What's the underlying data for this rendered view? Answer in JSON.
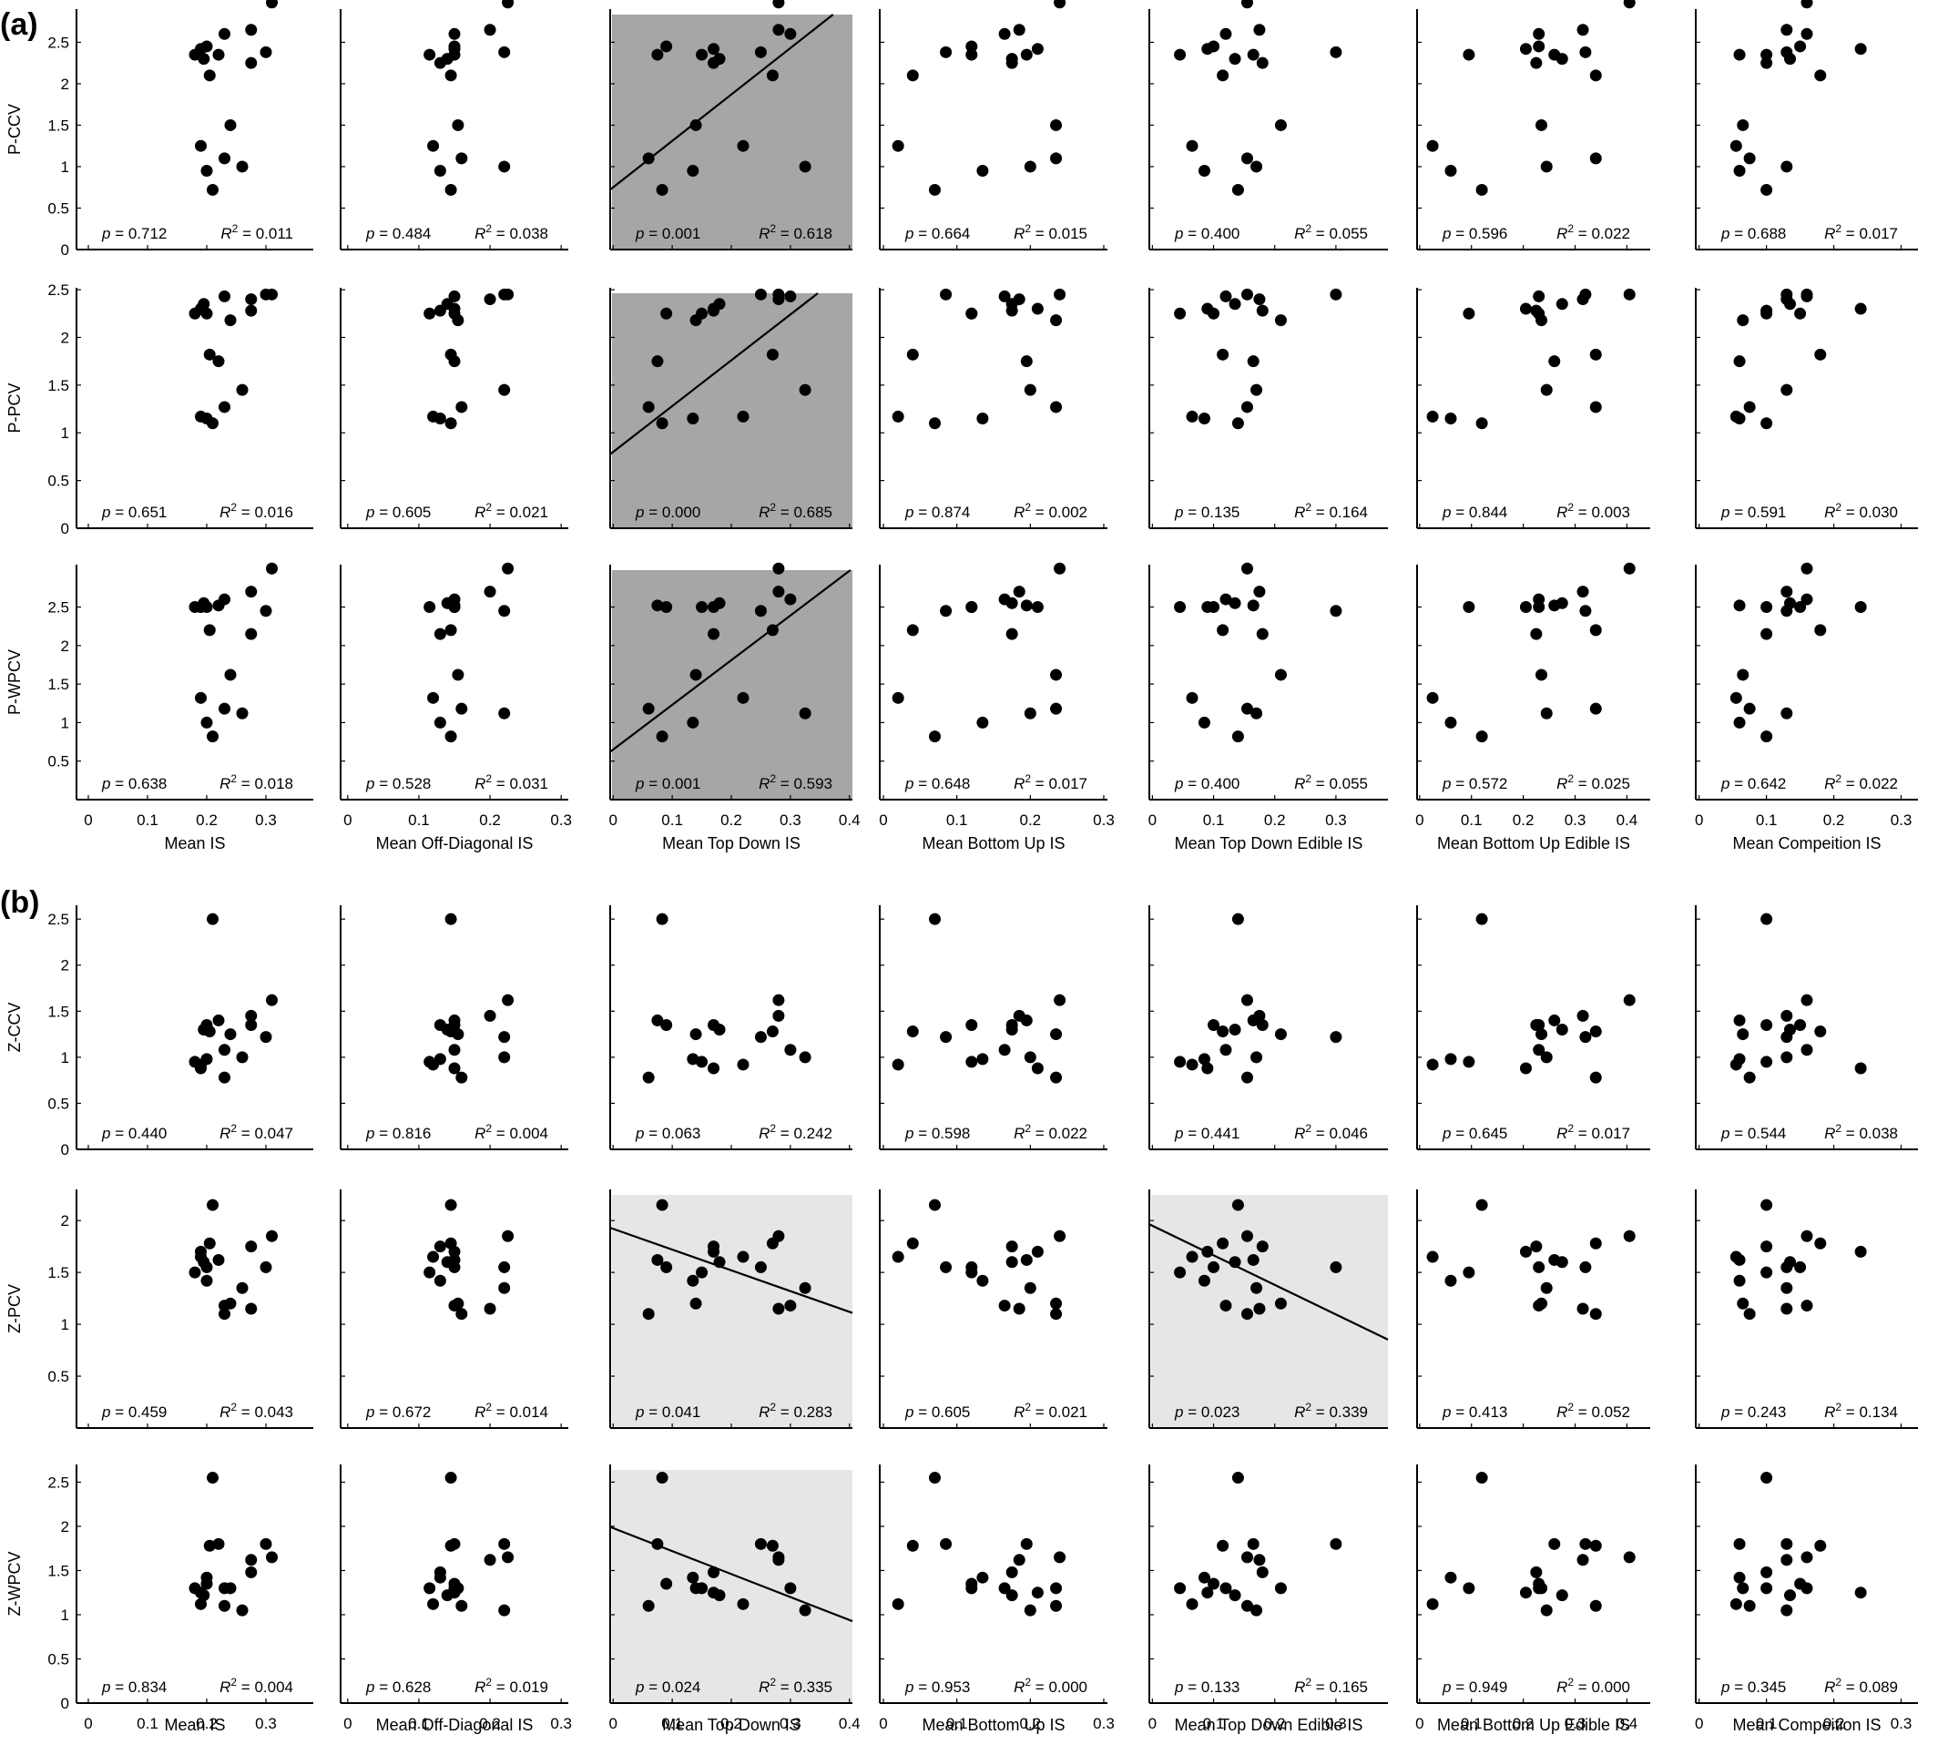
{
  "chart_data": {
    "type": "scatter",
    "panels": [
      {
        "label": "(a)",
        "rows": [
          "P-CCV",
          "P-PCV",
          "P-WPCV"
        ]
      },
      {
        "label": "(b)",
        "rows": [
          "Z-CCV",
          "Z-PCV",
          "Z-WPCV"
        ]
      }
    ],
    "columns": [
      {
        "xlabel": "Mean IS",
        "xlim": [
          -0.02,
          0.38
        ],
        "ticks": [
          0,
          0.1,
          0.2,
          0.3
        ],
        "tick_labels": [
          "0",
          "0.1",
          "0.2",
          "0.3"
        ],
        "x": [
          0.21,
          0.31,
          0.2,
          0.275,
          0.19,
          0.23,
          0.18,
          0.26,
          0.195,
          0.19,
          0.205,
          0.23,
          0.2,
          0.24,
          0.3,
          0.275,
          0.22
        ]
      },
      {
        "xlabel": "Mean Off-Diagonal IS",
        "xlim": [
          -0.01,
          0.31
        ],
        "ticks": [
          0,
          0.1,
          0.2,
          0.3
        ],
        "tick_labels": [
          "0",
          "0.1",
          "0.2",
          "0.3"
        ],
        "x": [
          0.145,
          0.225,
          0.13,
          0.2,
          0.12,
          0.15,
          0.115,
          0.22,
          0.14,
          0.15,
          0.145,
          0.16,
          0.15,
          0.155,
          0.22,
          0.13,
          0.15
        ]
      },
      {
        "xlabel": "Mean Top Down IS",
        "xlim": [
          -0.005,
          0.405
        ],
        "ticks": [
          0,
          0.1,
          0.2,
          0.3,
          0.4
        ],
        "tick_labels": [
          "0",
          "0.1",
          "0.2",
          "0.3",
          "0.4"
        ],
        "x": [
          0.083,
          0.28,
          0.135,
          0.28,
          0.22,
          0.3,
          0.15,
          0.325,
          0.18,
          0.17,
          0.27,
          0.06,
          0.09,
          0.14,
          0.25,
          0.17,
          0.075
        ]
      },
      {
        "xlabel": "Mean Bottom Up IS",
        "xlim": [
          -0.005,
          0.305
        ],
        "ticks": [
          0,
          0.1,
          0.2,
          0.3
        ],
        "tick_labels": [
          "0",
          "0.1",
          "0.2",
          "0.3"
        ],
        "x": [
          0.07,
          0.24,
          0.135,
          0.185,
          0.02,
          0.165,
          0.12,
          0.2,
          0.175,
          0.21,
          0.04,
          0.235,
          0.12,
          0.235,
          0.085,
          0.175,
          0.195
        ]
      },
      {
        "xlabel": "Mean Top Down Edible IS",
        "xlim": [
          -0.005,
          0.385
        ],
        "ticks": [
          0,
          0.1,
          0.2,
          0.3
        ],
        "tick_labels": [
          "0",
          "0.1",
          "0.2",
          "0.3"
        ],
        "x": [
          0.14,
          0.155,
          0.085,
          0.175,
          0.065,
          0.12,
          0.045,
          0.17,
          0.135,
          0.09,
          0.115,
          0.155,
          0.1,
          0.21,
          0.3,
          0.18,
          0.165
        ]
      },
      {
        "xlabel": "Mean Bottom Up Edible IS",
        "xlim": [
          -0.005,
          0.445
        ],
        "ticks": [
          0,
          0.1,
          0.2,
          0.3,
          0.4
        ],
        "tick_labels": [
          "0",
          "0.1",
          "0.2",
          "0.3",
          "0.4"
        ],
        "x": [
          0.12,
          0.405,
          0.06,
          0.315,
          0.025,
          0.23,
          0.095,
          0.245,
          0.275,
          0.205,
          0.34,
          0.34,
          0.23,
          0.235,
          0.32,
          0.225,
          0.26
        ]
      },
      {
        "xlabel": "Mean Compeition IS",
        "xlim": [
          -0.005,
          0.325
        ],
        "ticks": [
          0,
          0.1,
          0.2,
          0.3
        ],
        "tick_labels": [
          "0",
          "0.1",
          "0.2",
          "0.3"
        ],
        "x": [
          0.1,
          0.16,
          0.06,
          0.13,
          0.055,
          0.16,
          0.1,
          0.13,
          0.135,
          0.24,
          0.18,
          0.075,
          0.15,
          0.065,
          0.13,
          0.1,
          0.06
        ]
      }
    ],
    "rows": [
      {
        "name": "P-CCV",
        "ylim": [
          0,
          2.9
        ],
        "ticks": [
          0,
          0.5,
          1,
          1.5,
          2,
          2.5
        ],
        "tick_labels": [
          "0",
          "0.5",
          "1",
          "1.5",
          "2",
          "2.5"
        ],
        "y": [
          0.72,
          2.98,
          0.95,
          2.65,
          1.25,
          2.6,
          2.35,
          1.0,
          2.3,
          2.42,
          2.1,
          1.1,
          2.45,
          1.5,
          2.38,
          2.25,
          2.35
        ],
        "p": [
          "0.712",
          "0.484",
          "0.001",
          "0.664",
          "0.400",
          "0.596",
          "0.688"
        ],
        "r2": [
          "0.011",
          "0.038",
          "0.618",
          "0.015",
          "0.055",
          "0.022",
          "0.017"
        ]
      },
      {
        "name": "P-PCV",
        "ylim": [
          0,
          2.52
        ],
        "ticks": [
          0,
          0.5,
          1,
          1.5,
          2,
          2.5
        ],
        "tick_labels": [
          "0",
          "0.5",
          "1",
          "1.5",
          "2",
          "2.5"
        ],
        "y": [
          1.1,
          2.45,
          1.15,
          2.4,
          1.17,
          2.43,
          2.25,
          1.45,
          2.35,
          2.3,
          1.82,
          1.27,
          2.25,
          2.18,
          2.45,
          2.28,
          1.75
        ],
        "p": [
          "0.651",
          "0.605",
          "0.000",
          "0.874",
          "0.135",
          "0.844",
          "0.591"
        ],
        "r2": [
          "0.016",
          "0.021",
          "0.685",
          "0.002",
          "0.164",
          "0.003",
          "0.030"
        ]
      },
      {
        "name": "P-WPCV",
        "ylim": [
          0,
          3.05
        ],
        "ticks": [
          0.5,
          1,
          1.5,
          2,
          2.5
        ],
        "tick_labels": [
          "0.5",
          "1",
          "1.5",
          "2",
          "2.5"
        ],
        "y": [
          0.82,
          3.0,
          1.0,
          2.7,
          1.32,
          2.6,
          2.5,
          1.12,
          2.55,
          2.5,
          2.2,
          1.18,
          2.5,
          1.62,
          2.45,
          2.15,
          2.52
        ],
        "p": [
          "0.638",
          "0.528",
          "0.001",
          "0.648",
          "0.400",
          "0.572",
          "0.642"
        ],
        "r2": [
          "0.018",
          "0.031",
          "0.593",
          "0.017",
          "0.055",
          "0.025",
          "0.022"
        ]
      },
      {
        "name": "Z-CCV",
        "ylim": [
          0,
          2.65
        ],
        "ticks": [
          0,
          0.5,
          1,
          1.5,
          2,
          2.5
        ],
        "tick_labels": [
          "0",
          "0.5",
          "1",
          "1.5",
          "2",
          "2.5"
        ],
        "y": [
          2.5,
          1.62,
          0.98,
          1.45,
          0.92,
          1.08,
          0.95,
          1.0,
          1.3,
          0.88,
          1.28,
          0.78,
          1.35,
          1.25,
          1.22,
          1.35,
          1.4
        ],
        "p": [
          "0.440",
          "0.816",
          "0.063",
          "0.598",
          "0.441",
          "0.645",
          "0.544"
        ],
        "r2": [
          "0.047",
          "0.004",
          "0.242",
          "0.022",
          "0.046",
          "0.017",
          "0.038"
        ]
      },
      {
        "name": "Z-PCV",
        "ylim": [
          0,
          2.3
        ],
        "ticks": [
          0.5,
          1,
          1.5,
          2
        ],
        "tick_labels": [
          "0.5",
          "1",
          "1.5",
          "2"
        ],
        "y": [
          2.15,
          1.85,
          1.42,
          1.15,
          1.65,
          1.18,
          1.5,
          1.35,
          1.6,
          1.7,
          1.78,
          1.1,
          1.55,
          1.2,
          1.55,
          1.75,
          1.62
        ],
        "p": [
          "0.459",
          "0.672",
          "0.041",
          "0.605",
          "0.023",
          "0.413",
          "0.243"
        ],
        "r2": [
          "0.043",
          "0.014",
          "0.283",
          "0.021",
          "0.339",
          "0.052",
          "0.134"
        ]
      },
      {
        "name": "Z-WPCV",
        "ylim": [
          0,
          2.7
        ],
        "ticks": [
          0,
          0.5,
          1,
          1.5,
          2,
          2.5
        ],
        "tick_labels": [
          "0",
          "0.5",
          "1",
          "1.5",
          "2",
          "2.5"
        ],
        "y": [
          2.55,
          1.65,
          1.42,
          1.62,
          1.12,
          1.3,
          1.3,
          1.05,
          1.22,
          1.25,
          1.78,
          1.1,
          1.35,
          1.3,
          1.8,
          1.48,
          1.8
        ],
        "p": [
          "0.834",
          "0.628",
          "0.024",
          "0.953",
          "0.133",
          "0.949",
          "0.345"
        ],
        "r2": [
          "0.004",
          "0.019",
          "0.335",
          "0.000",
          "0.165",
          "0.000",
          "0.089"
        ]
      }
    ],
    "highlights": [
      {
        "row": 0,
        "col": 2,
        "shade": "#a6a6a6",
        "fit": [
          0.75,
          5.6
        ]
      },
      {
        "row": 1,
        "col": 2,
        "shade": "#a6a6a6",
        "fit": [
          0.8,
          4.8
        ]
      },
      {
        "row": 2,
        "col": 2,
        "shade": "#a6a6a6",
        "fit": [
          0.65,
          5.8
        ]
      },
      {
        "row": 4,
        "col": 2,
        "shade": "#e6e6e6",
        "fit": [
          1.92,
          -2.0
        ]
      },
      {
        "row": 4,
        "col": 4,
        "shade": "#e6e6e6",
        "fit": [
          1.95,
          -2.85
        ]
      },
      {
        "row": 5,
        "col": 2,
        "shade": "#e6e6e6",
        "fit": [
          1.98,
          -2.6
        ]
      }
    ],
    "p_prefix": "p =",
    "r2_prefix": "R",
    "r2_sup": "2",
    "r2_suffix": " =",
    "marker_color": "#000000",
    "grid": false
  }
}
